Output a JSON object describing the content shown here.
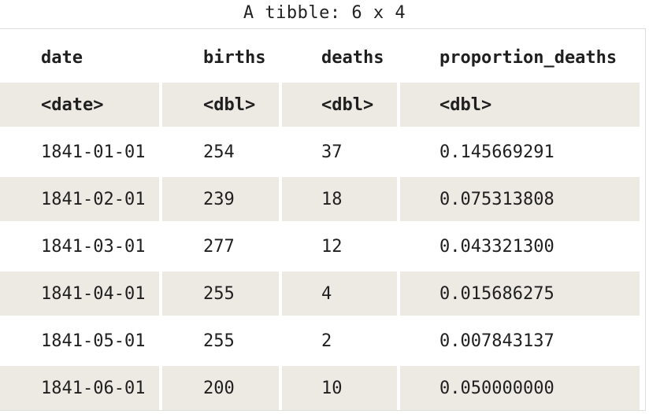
{
  "caption": "A tibble: 6 x 4",
  "columns": [
    "date",
    "births",
    "deaths",
    "proportion_deaths"
  ],
  "types": [
    "<date>",
    "<dbl>",
    "<dbl>",
    "<dbl>"
  ],
  "rows": [
    [
      "1841-01-01",
      "254",
      "37",
      "0.145669291"
    ],
    [
      "1841-02-01",
      "239",
      "18",
      "0.075313808"
    ],
    [
      "1841-03-01",
      "277",
      "12",
      "0.043321300"
    ],
    [
      "1841-04-01",
      "255",
      "4",
      "0.015686275"
    ],
    [
      "1841-05-01",
      "255",
      "2",
      "0.007843137"
    ],
    [
      "1841-06-01",
      "200",
      "10",
      "0.050000000"
    ]
  ],
  "colors": {
    "shade": "#edeae4",
    "text": "#1f1f1f",
    "border": "#dddddd"
  }
}
